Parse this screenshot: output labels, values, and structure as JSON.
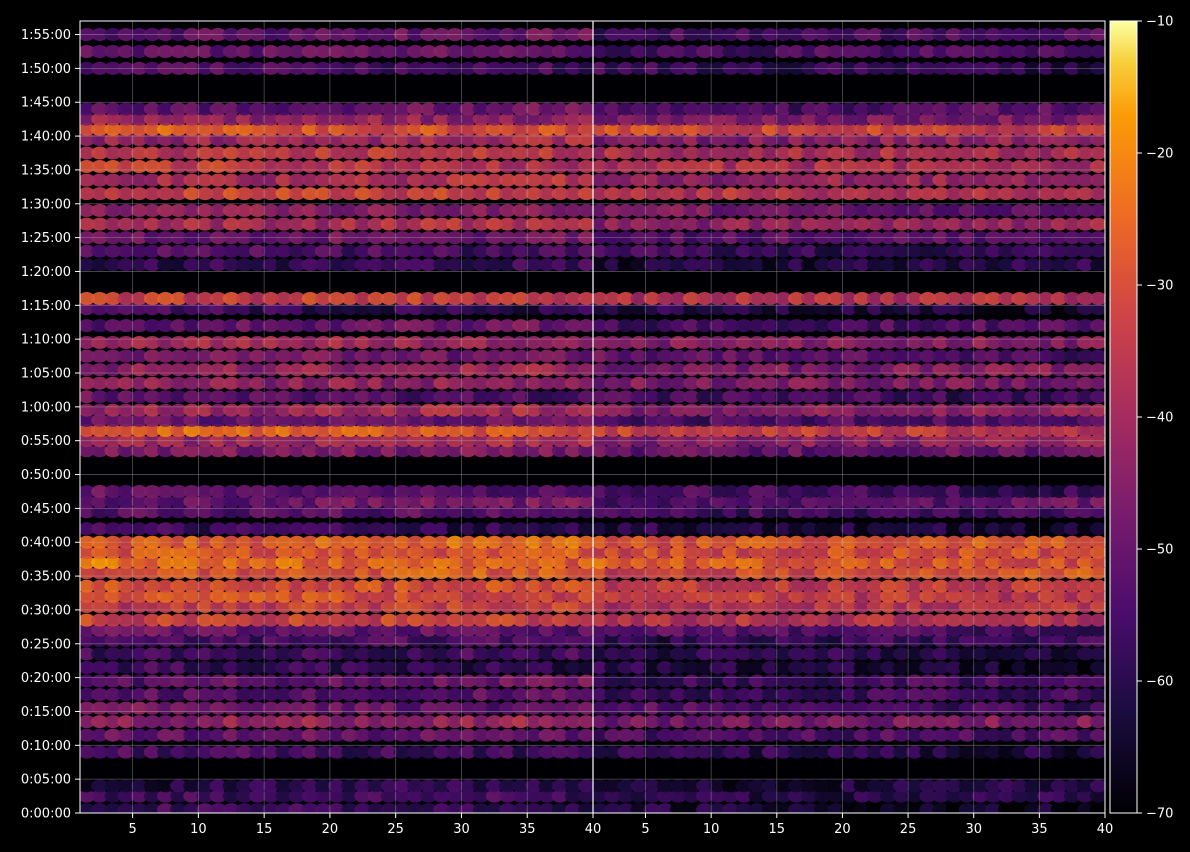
{
  "chart_data": {
    "type": "heatmap",
    "panels": [
      {
        "name": "",
        "x": {
          "range": [
            1,
            40
          ],
          "ticks": [
            5,
            10,
            15,
            20,
            25,
            30,
            35,
            40
          ]
        },
        "band_centers_min": [
          0.5,
          2.5,
          4,
          9,
          11.5,
          13.5,
          15.5,
          17.5,
          19.5,
          21.5,
          23.5,
          25.5,
          27,
          28.5,
          30.5,
          32,
          33.5,
          35.5,
          37,
          38.5,
          40,
          42,
          44.5,
          46,
          47.5,
          53.5,
          55,
          56.5,
          58,
          59.5,
          61.5,
          63.5,
          65.5,
          67.5,
          69.5,
          72,
          74.5,
          76,
          81,
          83,
          85,
          87,
          89,
          91.5,
          93.5,
          95.5,
          97.5,
          99.5,
          101,
          102.5,
          104,
          110,
          112.5,
          115
        ],
        "band_level_db": [
          -58,
          -56,
          -60,
          -56,
          -50,
          -42,
          -49,
          -52,
          -50,
          -58,
          -56,
          -55,
          -50,
          -32,
          -33,
          -30,
          -30,
          -28,
          -25,
          -28,
          -26,
          -58,
          -52,
          -49,
          -52,
          -46,
          -40,
          -26,
          -50,
          -40,
          -52,
          -43,
          -42,
          -47,
          -40,
          -50,
          -58,
          -33,
          -58,
          -54,
          -48,
          -38,
          -44,
          -32,
          -38,
          -35,
          -35,
          -40,
          -28,
          -42,
          -50,
          -54,
          -50,
          -50
        ]
      },
      {
        "name": "",
        "x": {
          "range": [
            1,
            40
          ],
          "ticks": [
            5,
            10,
            15,
            20,
            25,
            30,
            35,
            40
          ]
        },
        "band_centers_min": [
          0.5,
          2.5,
          4,
          9,
          11.5,
          13.5,
          15.5,
          17.5,
          19.5,
          21.5,
          23.5,
          25.5,
          27,
          28.5,
          30.5,
          32,
          33.5,
          35.5,
          37,
          38.5,
          40,
          42,
          44.5,
          46,
          47.5,
          53.5,
          55,
          56.5,
          58,
          59.5,
          61.5,
          63.5,
          65.5,
          67.5,
          69.5,
          72,
          74.5,
          76,
          81,
          83,
          85,
          87,
          89,
          91.5,
          93.5,
          95.5,
          97.5,
          99.5,
          101,
          102.5,
          104,
          110,
          112.5,
          115
        ],
        "band_level_db": [
          -64,
          -60,
          -62,
          -60,
          -54,
          -46,
          -54,
          -56,
          -56,
          -62,
          -60,
          -58,
          -54,
          -36,
          -37,
          -34,
          -34,
          -30,
          -28,
          -30,
          -28,
          -62,
          -56,
          -52,
          -56,
          -50,
          -44,
          -34,
          -54,
          -44,
          -56,
          -46,
          -46,
          -52,
          -44,
          -54,
          -62,
          -37,
          -62,
          -58,
          -52,
          -42,
          -48,
          -36,
          -42,
          -38,
          -38,
          -44,
          -32,
          -46,
          -54,
          -58,
          -54,
          -54
        ]
      }
    ],
    "y": {
      "range_min": [
        0,
        117
      ],
      "tick_labels": [
        "0:00:00",
        "0:05:00",
        "0:10:00",
        "0:15:00",
        "0:20:00",
        "0:25:00",
        "0:30:00",
        "0:35:00",
        "0:40:00",
        "0:45:00",
        "0:50:00",
        "0:55:00",
        "1:00:00",
        "1:05:00",
        "1:10:00",
        "1:15:00",
        "1:20:00",
        "1:25:00",
        "1:30:00",
        "1:35:00",
        "1:40:00",
        "1:45:00",
        "1:50:00",
        "1:55:00"
      ]
    },
    "colorbar": {
      "range": [
        -70,
        -10
      ],
      "ticks": [
        -10,
        -20,
        -30,
        -40,
        -50,
        -60,
        -70
      ],
      "tick_labels": [
        "−10",
        "−20",
        "−30",
        "−40",
        "−50",
        "−60",
        "−70"
      ]
    },
    "colormap": "inferno",
    "grid": true
  }
}
